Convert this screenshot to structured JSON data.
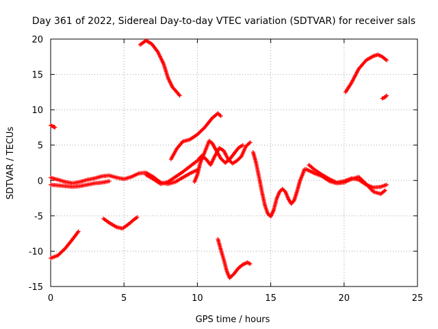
{
  "chart_data": {
    "type": "scatter",
    "title": "Day 361 of 2022, Sidereal Day-to-day VTEC variation (SDTVAR) for receiver sals",
    "xlabel": "GPS time / hours",
    "ylabel": "SDTVAR / TECUs",
    "xlim": [
      0,
      25
    ],
    "ylim": [
      -15,
      20
    ],
    "xticks": [
      0,
      5,
      10,
      15,
      20,
      25
    ],
    "yticks": [
      -15,
      -10,
      -5,
      0,
      5,
      10,
      15,
      20
    ],
    "grid": true,
    "marker": "+",
    "color": "#ff0000",
    "series": [
      {
        "name": "s1",
        "points": [
          [
            0.0,
            7.8
          ],
          [
            0.2,
            7.6
          ],
          [
            0.3,
            7.5
          ]
        ]
      },
      {
        "name": "s2",
        "points": [
          [
            0.0,
            -0.6
          ],
          [
            0.5,
            -0.7
          ],
          [
            1.0,
            -0.8
          ],
          [
            1.5,
            -0.9
          ],
          [
            2.0,
            -0.8
          ],
          [
            2.5,
            -0.6
          ],
          [
            3.0,
            -0.4
          ],
          [
            3.5,
            -0.3
          ],
          [
            4.0,
            -0.1
          ]
        ]
      },
      {
        "name": "s3",
        "points": [
          [
            0.0,
            0.4
          ],
          [
            0.5,
            0.1
          ],
          [
            1.0,
            -0.2
          ],
          [
            1.5,
            -0.4
          ],
          [
            2.0,
            -0.2
          ],
          [
            2.5,
            0.1
          ],
          [
            3.0,
            0.3
          ],
          [
            3.5,
            0.6
          ],
          [
            4.0,
            0.7
          ],
          [
            4.5,
            0.4
          ],
          [
            5.0,
            0.2
          ],
          [
            5.5,
            0.5
          ],
          [
            6.0,
            1.0
          ],
          [
            6.5,
            1.1
          ],
          [
            7.0,
            0.5
          ],
          [
            7.5,
            -0.3
          ],
          [
            8.0,
            -0.5
          ],
          [
            8.5,
            -0.2
          ],
          [
            9.0,
            0.4
          ],
          [
            9.5,
            1.0
          ],
          [
            10.0,
            1.5
          ]
        ]
      },
      {
        "name": "s4",
        "points": [
          [
            0.0,
            -11.0
          ],
          [
            0.5,
            -10.6
          ],
          [
            1.0,
            -9.6
          ],
          [
            1.5,
            -8.3
          ],
          [
            1.9,
            -7.2
          ]
        ]
      },
      {
        "name": "s5",
        "points": [
          [
            3.6,
            -5.4
          ],
          [
            4.0,
            -6.0
          ],
          [
            4.5,
            -6.6
          ],
          [
            4.9,
            -6.8
          ],
          [
            5.3,
            -6.2
          ],
          [
            5.7,
            -5.5
          ],
          [
            5.9,
            -5.2
          ]
        ]
      },
      {
        "name": "s6",
        "points": [
          [
            6.1,
            19.2
          ],
          [
            6.5,
            19.8
          ],
          [
            6.9,
            19.3
          ],
          [
            7.3,
            18.2
          ],
          [
            7.7,
            16.5
          ],
          [
            8.0,
            14.5
          ],
          [
            8.3,
            13.2
          ],
          [
            8.6,
            12.5
          ],
          [
            8.8,
            12.0
          ]
        ]
      },
      {
        "name": "s7",
        "points": [
          [
            8.2,
            3.0
          ],
          [
            8.6,
            4.5
          ],
          [
            9.0,
            5.5
          ],
          [
            9.5,
            5.8
          ],
          [
            10.0,
            6.5
          ],
          [
            10.5,
            7.5
          ],
          [
            11.0,
            8.8
          ],
          [
            11.4,
            9.5
          ],
          [
            11.6,
            9.1
          ]
        ]
      },
      {
        "name": "s8",
        "points": [
          [
            6.5,
            0.8
          ],
          [
            7.0,
            0.2
          ],
          [
            7.5,
            -0.5
          ],
          [
            8.0,
            -0.2
          ],
          [
            8.5,
            0.5
          ],
          [
            9.0,
            1.2
          ],
          [
            9.5,
            2.0
          ],
          [
            10.0,
            2.8
          ],
          [
            10.3,
            3.5
          ],
          [
            10.6,
            3.0
          ],
          [
            10.9,
            2.2
          ],
          [
            11.2,
            3.5
          ],
          [
            11.5,
            4.6
          ],
          [
            11.8,
            4.2
          ],
          [
            12.1,
            3.0
          ],
          [
            12.4,
            2.4
          ],
          [
            12.7,
            2.8
          ],
          [
            13.0,
            3.4
          ],
          [
            13.3,
            4.8
          ],
          [
            13.6,
            5.4
          ]
        ]
      },
      {
        "name": "s9",
        "points": [
          [
            9.8,
            -0.2
          ],
          [
            10.0,
            0.8
          ],
          [
            10.2,
            2.5
          ],
          [
            10.5,
            4.0
          ],
          [
            10.8,
            5.6
          ],
          [
            11.0,
            5.3
          ],
          [
            11.3,
            4.2
          ],
          [
            11.6,
            3.1
          ],
          [
            11.9,
            2.5
          ],
          [
            12.2,
            3.0
          ],
          [
            12.5,
            3.8
          ],
          [
            12.8,
            4.6
          ],
          [
            13.1,
            5.0
          ]
        ]
      },
      {
        "name": "s10",
        "points": [
          [
            11.4,
            -8.3
          ],
          [
            11.6,
            -9.8
          ],
          [
            11.8,
            -11.2
          ],
          [
            12.0,
            -12.8
          ],
          [
            12.2,
            -13.8
          ],
          [
            12.5,
            -13.2
          ],
          [
            12.8,
            -12.4
          ],
          [
            13.1,
            -11.9
          ],
          [
            13.4,
            -11.6
          ],
          [
            13.6,
            -11.8
          ]
        ]
      },
      {
        "name": "s11",
        "points": [
          [
            13.8,
            4.0
          ],
          [
            14.0,
            2.5
          ],
          [
            14.2,
            0.5
          ],
          [
            14.4,
            -1.6
          ],
          [
            14.6,
            -3.5
          ],
          [
            14.8,
            -4.7
          ],
          [
            15.0,
            -5.1
          ],
          [
            15.2,
            -4.2
          ],
          [
            15.4,
            -2.6
          ],
          [
            15.6,
            -1.6
          ],
          [
            15.8,
            -1.2
          ],
          [
            16.0,
            -1.6
          ],
          [
            16.2,
            -2.6
          ],
          [
            16.4,
            -3.3
          ],
          [
            16.6,
            -2.8
          ],
          [
            16.8,
            -1.5
          ],
          [
            17.0,
            0.0
          ],
          [
            17.2,
            1.0
          ],
          [
            17.3,
            1.6
          ]
        ]
      },
      {
        "name": "s12",
        "points": [
          [
            17.6,
            2.2
          ],
          [
            18.0,
            1.5
          ],
          [
            18.5,
            0.8
          ],
          [
            19.0,
            0.2
          ],
          [
            19.5,
            -0.3
          ],
          [
            20.0,
            -0.1
          ],
          [
            20.5,
            0.3
          ],
          [
            21.0,
            0.1
          ],
          [
            21.5,
            -0.6
          ],
          [
            22.0,
            -1.0
          ],
          [
            22.5,
            -0.9
          ],
          [
            22.9,
            -0.6
          ]
        ]
      },
      {
        "name": "s13",
        "points": [
          [
            17.4,
            1.6
          ],
          [
            18.0,
            1.0
          ],
          [
            18.5,
            0.6
          ],
          [
            19.0,
            -0.1
          ],
          [
            19.5,
            -0.4
          ],
          [
            20.0,
            -0.3
          ],
          [
            20.5,
            0.2
          ],
          [
            21.0,
            0.5
          ],
          [
            21.5,
            -0.5
          ],
          [
            22.0,
            -1.6
          ],
          [
            22.5,
            -1.9
          ],
          [
            22.8,
            -1.4
          ]
        ]
      },
      {
        "name": "s14",
        "points": [
          [
            20.1,
            12.5
          ],
          [
            20.5,
            13.8
          ],
          [
            21.0,
            15.8
          ],
          [
            21.5,
            17.0
          ],
          [
            22.0,
            17.6
          ],
          [
            22.3,
            17.8
          ],
          [
            22.6,
            17.5
          ],
          [
            22.9,
            17.0
          ]
        ]
      },
      {
        "name": "s15",
        "points": [
          [
            22.6,
            11.6
          ],
          [
            22.8,
            11.8
          ],
          [
            22.9,
            12.0
          ]
        ]
      }
    ]
  }
}
